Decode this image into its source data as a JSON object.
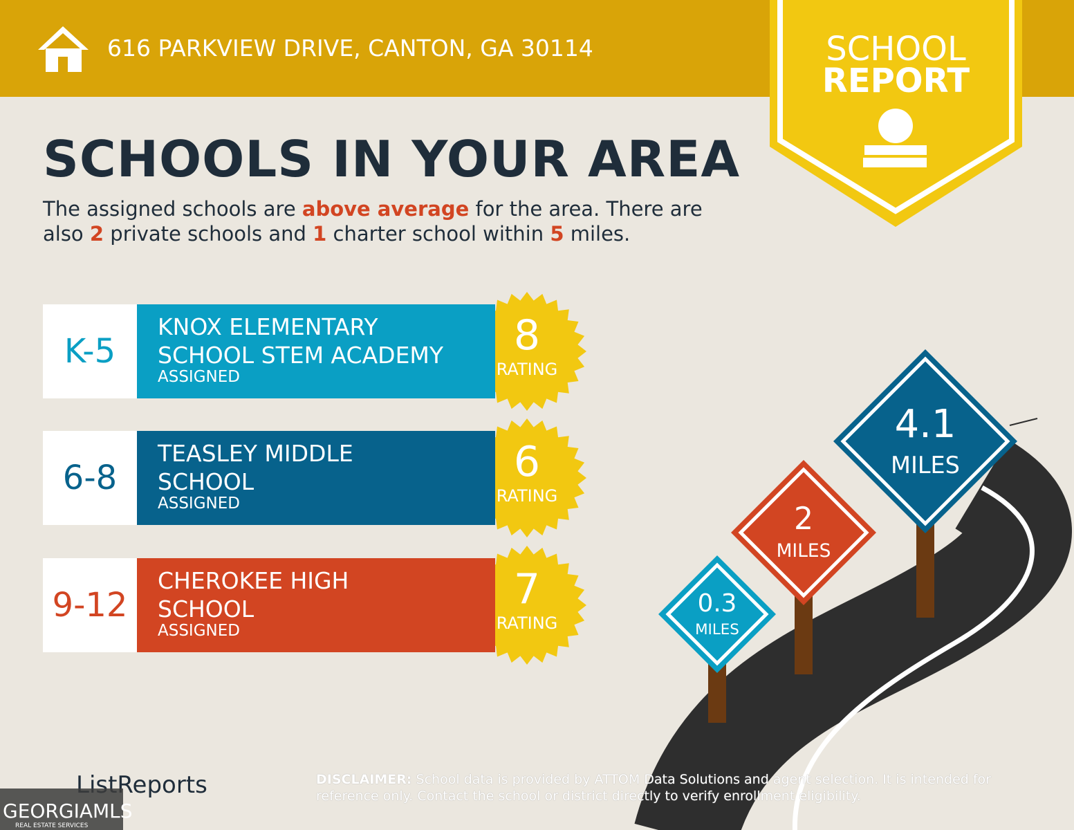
{
  "header": {
    "address": "616 PARKVIEW DRIVE, CANTON, GA 30114"
  },
  "badge": {
    "line1": "SCHOOL",
    "line2": "REPORT"
  },
  "title": "SCHOOLS IN YOUR AREA",
  "summary": [
    {
      "text": "The assigned schools are ",
      "highlight": false
    },
    {
      "text": "above average",
      "highlight": true
    },
    {
      "text": " for the area. There are also ",
      "highlight": false
    },
    {
      "text": "2",
      "highlight": true
    },
    {
      "text": " private schools and ",
      "highlight": false
    },
    {
      "text": "1",
      "highlight": true
    },
    {
      "text": " charter school within ",
      "highlight": false
    },
    {
      "text": "5",
      "highlight": true
    },
    {
      "text": " miles.",
      "highlight": false
    }
  ],
  "schools": [
    {
      "grades": "K-5",
      "name_lines": [
        "KNOX ELEMENTARY",
        "SCHOOL STEM ACADEMY"
      ],
      "status": "ASSIGNED",
      "rating": 8,
      "rating_label": "RATING",
      "color": "#0a9fc4"
    },
    {
      "grades": "6-8",
      "name_lines": [
        "TEASLEY MIDDLE",
        "SCHOOL"
      ],
      "status": "ASSIGNED",
      "rating": 6,
      "rating_label": "RATING",
      "color": "#07628c"
    },
    {
      "grades": "9-12",
      "name_lines": [
        "CHEROKEE HIGH",
        "SCHOOL"
      ],
      "status": "ASSIGNED",
      "rating": 7,
      "rating_label": "RATING",
      "color": "#d24522"
    }
  ],
  "signs": [
    {
      "distance": 0.3,
      "unit": "MILES",
      "color": "#0a9fc4"
    },
    {
      "distance": 2,
      "unit": "MILES",
      "color": "#d24522"
    },
    {
      "distance": 4.1,
      "unit": "MILES",
      "color": "#07628c"
    }
  ],
  "footer": {
    "logo": "ListReports",
    "disclaimer_label": "DISCLAIMER:",
    "disclaimer": "School data is provided by ATTOM Data Solutions and agent selection. It is intended for reference only. Contact the school or district directly to verify enrollment eligibility.",
    "watermark": "GEORGIAMLS",
    "watermark_sub": "REAL ESTATE SERVICES"
  }
}
